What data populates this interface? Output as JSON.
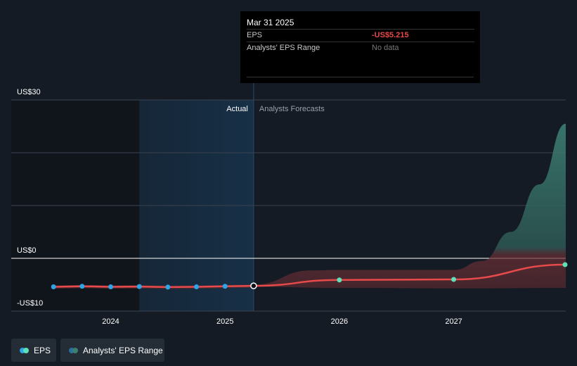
{
  "tooltip": {
    "date": "Mar 31 2025",
    "eps_label": "EPS",
    "eps_value": "-US$5.215",
    "range_label": "Analysts' EPS Range",
    "range_value": "No data"
  },
  "legend": {
    "eps_label": "EPS",
    "range_label": "Analysts' EPS Range"
  },
  "colors": {
    "background": "#151b24",
    "past_shade": "#10151c",
    "actual_shade": "#173047",
    "eps_line": "#e64a4a",
    "eps_marker": "#2fa4e7",
    "forecast_marker": "#5ee0b8",
    "range_fill": "#3c7e72",
    "gridline": "#3a4250"
  },
  "chart_data": {
    "type": "line",
    "title": "",
    "section_labels": {
      "actual": "Actual",
      "forecast": "Analysts Forecasts"
    },
    "y_ticks": [
      {
        "value": 30,
        "label": "US$30"
      },
      {
        "value": 0,
        "label": "US$0"
      },
      {
        "value": -10,
        "label": "-US$10"
      }
    ],
    "ylim": [
      -10,
      30
    ],
    "x_ticks": [
      {
        "value": 2024.0,
        "label": "2024"
      },
      {
        "value": 2025.0,
        "label": "2025"
      },
      {
        "value": 2026.0,
        "label": "2026"
      },
      {
        "value": 2027.0,
        "label": "2027"
      }
    ],
    "xlim": [
      2023.13,
      2027.98
    ],
    "shade_start": 2024.25,
    "actual_end": 2025.25,
    "eps_actual": [
      {
        "x": 2023.5,
        "y": -5.4
      },
      {
        "x": 2023.75,
        "y": -5.3
      },
      {
        "x": 2024.0,
        "y": -5.4
      },
      {
        "x": 2024.25,
        "y": -5.35
      },
      {
        "x": 2024.5,
        "y": -5.45
      },
      {
        "x": 2024.75,
        "y": -5.4
      },
      {
        "x": 2025.0,
        "y": -5.3
      },
      {
        "x": 2025.25,
        "y": -5.215
      }
    ],
    "eps_forecast": [
      {
        "x": 2025.25,
        "y": -5.215
      },
      {
        "x": 2026.0,
        "y": -4.1
      },
      {
        "x": 2027.0,
        "y": -4.0
      },
      {
        "x": 2027.98,
        "y": -1.2
      }
    ],
    "range_upper": [
      {
        "x": 2025.25,
        "y": -5.0
      },
      {
        "x": 2025.75,
        "y": -2.3
      },
      {
        "x": 2026.0,
        "y": -2.2
      },
      {
        "x": 2027.0,
        "y": -2.2
      },
      {
        "x": 2027.25,
        "y": -0.5
      },
      {
        "x": 2027.5,
        "y": 5.0
      },
      {
        "x": 2027.75,
        "y": 14.0
      },
      {
        "x": 2027.98,
        "y": 25.5
      }
    ],
    "range_lower": [
      {
        "x": 2025.25,
        "y": -5.4
      },
      {
        "x": 2026.0,
        "y": -5.6
      },
      {
        "x": 2027.0,
        "y": -5.7
      },
      {
        "x": 2027.98,
        "y": -5.6
      }
    ]
  }
}
